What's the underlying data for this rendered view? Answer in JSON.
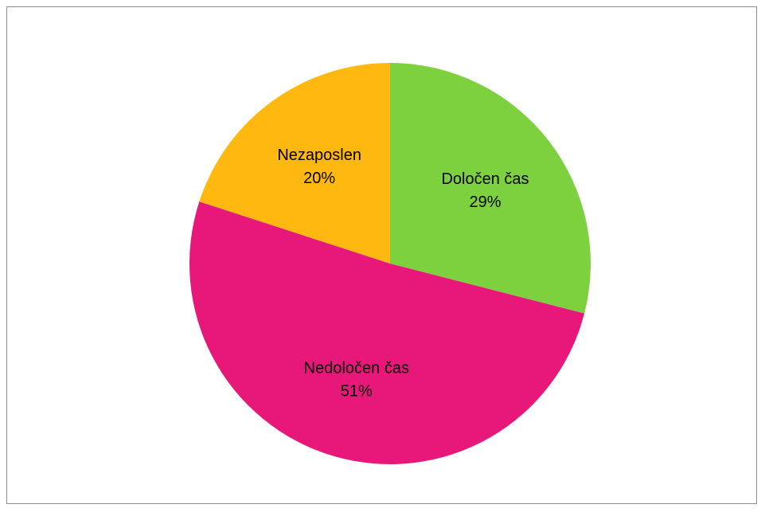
{
  "chart_data": {
    "type": "pie",
    "title": "",
    "slices": [
      {
        "label": "Določen čas",
        "value": 29,
        "percent_label": "29%",
        "color": "#7dd13f"
      },
      {
        "label": "Nedoločen čas",
        "value": 51,
        "percent_label": "51%",
        "color": "#e8187a"
      },
      {
        "label": "Nezaposlen",
        "value": 20,
        "percent_label": "20%",
        "color": "#ffb80f"
      }
    ],
    "start_angle_deg": 0,
    "direction": "clockwise",
    "legend": "none",
    "data_labels": "inside"
  }
}
